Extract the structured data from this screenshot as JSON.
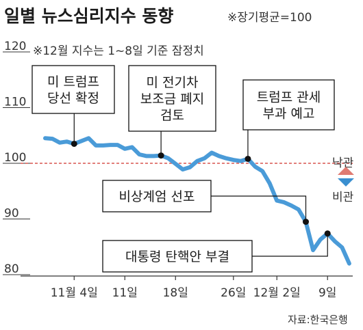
{
  "header": {
    "title": "일별 뉴스심리지수 동향",
    "baseline_note": "※장기평균=100",
    "sub_note": "※12월 지수는 1~8일 기준 잠정치"
  },
  "source": "자료:한국은행",
  "legend": {
    "up_label": "낙관",
    "down_label": "비관",
    "up_color": "#e07b72",
    "down_color": "#3a8fd0"
  },
  "colors": {
    "line": "#4a9bd8",
    "baseline": "#d9534f",
    "marker": "#111111"
  },
  "annotations": [
    {
      "lines": [
        "미 트럼프",
        "당선 확정"
      ],
      "day": 4
    },
    {
      "lines": [
        "미 전기차",
        "보조금 폐지",
        "검토"
      ],
      "day": 16
    },
    {
      "lines": [
        "트럼프 관세",
        "부과 예고"
      ],
      "day": 28
    },
    {
      "lines": [
        "비상계엄 선포"
      ],
      "day": 36
    },
    {
      "lines": [
        "대통령 탄핵안 부결"
      ],
      "day": 39
    }
  ],
  "chart_data": {
    "type": "line",
    "title": "일별 뉴스심리지수 동향",
    "ylim": [
      80,
      120
    ],
    "yticks": [
      80,
      90,
      100,
      110,
      120
    ],
    "baseline": 100,
    "xlim": [
      0,
      43
    ],
    "x_ticks": [
      {
        "day": 4,
        "label": "11월 4일"
      },
      {
        "day": 11,
        "label": "11일"
      },
      {
        "day": 18,
        "label": "18일"
      },
      {
        "day": 26,
        "label": "26일"
      },
      {
        "day": 32,
        "label": "12월 2일"
      },
      {
        "day": 39,
        "label": "9일"
      }
    ],
    "series": [
      {
        "x": [
          0,
          1,
          2,
          3,
          4,
          5,
          6,
          7,
          8,
          9,
          10,
          11,
          12,
          13,
          14,
          15,
          16,
          17,
          18,
          19,
          20,
          21,
          22,
          23,
          24,
          25,
          26,
          27,
          28,
          29,
          30,
          31,
          32,
          33,
          34,
          35,
          36,
          37,
          38,
          39,
          40,
          41,
          42
        ],
        "values": [
          104.5,
          104.4,
          103.7,
          103.9,
          103.5,
          104.0,
          104.5,
          103.2,
          103.2,
          103.3,
          103.3,
          102.6,
          102.9,
          101.6,
          101.3,
          101.3,
          101.4,
          100.9,
          99.9,
          98.9,
          99.3,
          100.4,
          100.9,
          101.9,
          101.3,
          100.9,
          100.6,
          100.4,
          100.8,
          99.4,
          98.6,
          96.4,
          93.3,
          93.0,
          92.4,
          91.7,
          89.5,
          84.4,
          86.3,
          87.4,
          86.0,
          84.9,
          82.0
        ]
      }
    ],
    "markers": [
      {
        "day": 4,
        "value": 103.5
      },
      {
        "day": 16,
        "value": 101.4
      },
      {
        "day": 28,
        "value": 100.8
      },
      {
        "day": 36,
        "value": 89.5
      },
      {
        "day": 39,
        "value": 87.4
      }
    ]
  }
}
